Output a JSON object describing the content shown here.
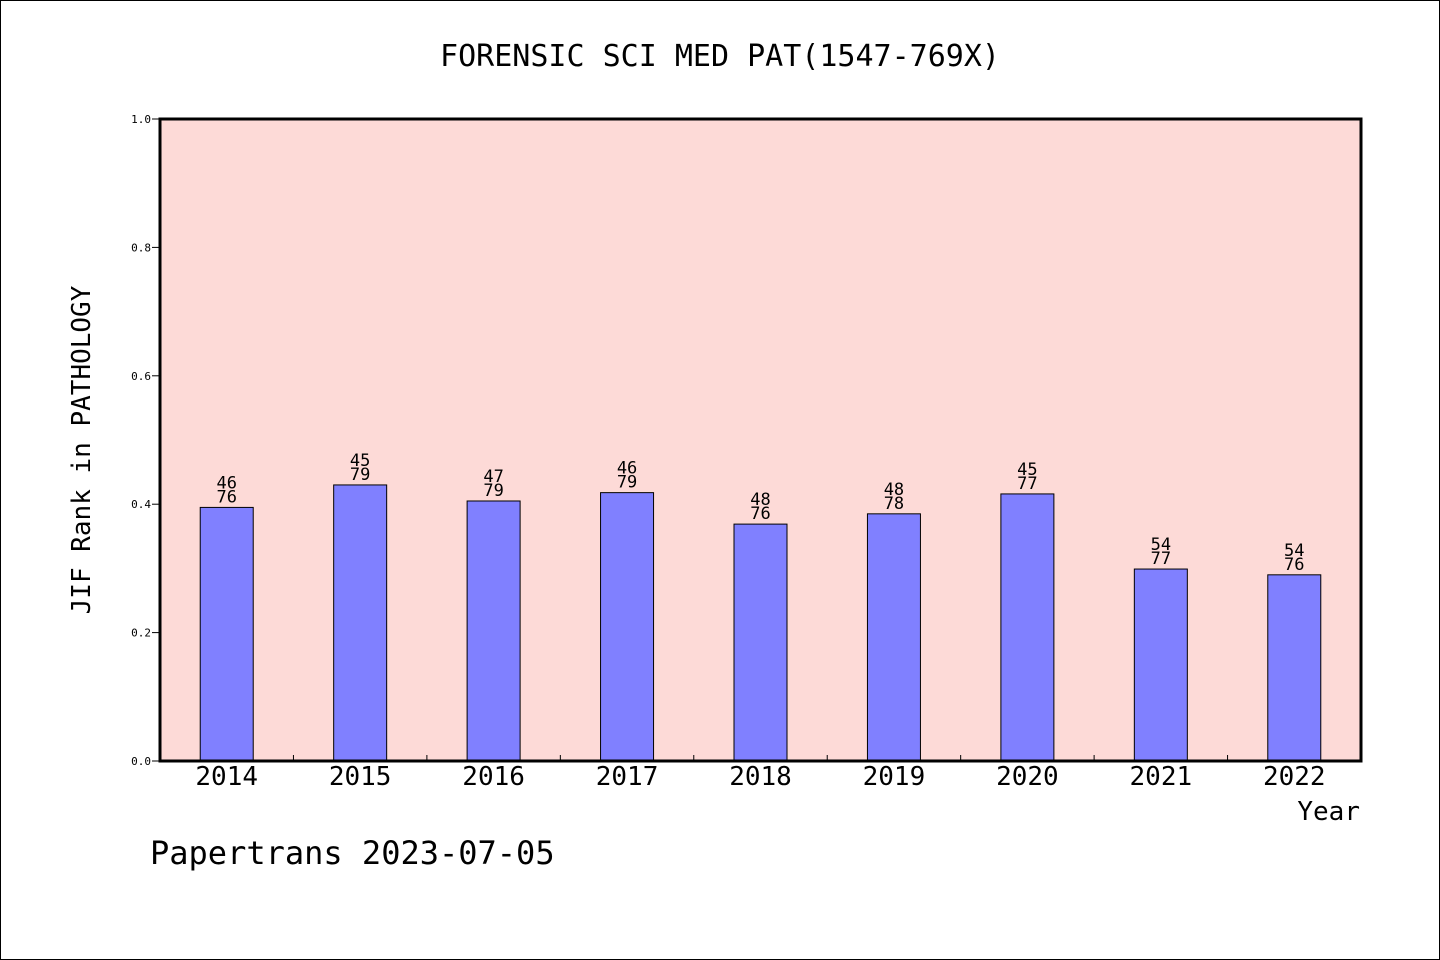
{
  "chart_data": {
    "type": "bar",
    "title": "FORENSIC SCI MED PAT(1547-769X)",
    "xlabel": "Year",
    "ylabel": "JIF Rank in PATHOLOGY",
    "ylim": [
      0,
      1.0
    ],
    "yticks": [
      "0.0",
      "0.2",
      "0.4",
      "0.6",
      "0.8",
      "1.0"
    ],
    "categories": [
      "2014",
      "2015",
      "2016",
      "2017",
      "2018",
      "2019",
      "2020",
      "2021",
      "2022"
    ],
    "values": [
      0.395,
      0.43,
      0.405,
      0.418,
      0.369,
      0.385,
      0.416,
      0.299,
      0.29
    ],
    "rank_labels": [
      {
        "rank": "46",
        "total": "76"
      },
      {
        "rank": "45",
        "total": "79"
      },
      {
        "rank": "47",
        "total": "79"
      },
      {
        "rank": "46",
        "total": "79"
      },
      {
        "rank": "48",
        "total": "76"
      },
      {
        "rank": "48",
        "total": "78"
      },
      {
        "rank": "45",
        "total": "77"
      },
      {
        "rank": "54",
        "total": "77"
      },
      {
        "rank": "54",
        "total": "76"
      }
    ],
    "grid": false,
    "colors": {
      "plot_background": "#fddad7",
      "bar_fill": "#8080ff",
      "bar_stroke": "#000000"
    }
  },
  "footer": {
    "watermark": "Papertrans 2023-07-05"
  }
}
